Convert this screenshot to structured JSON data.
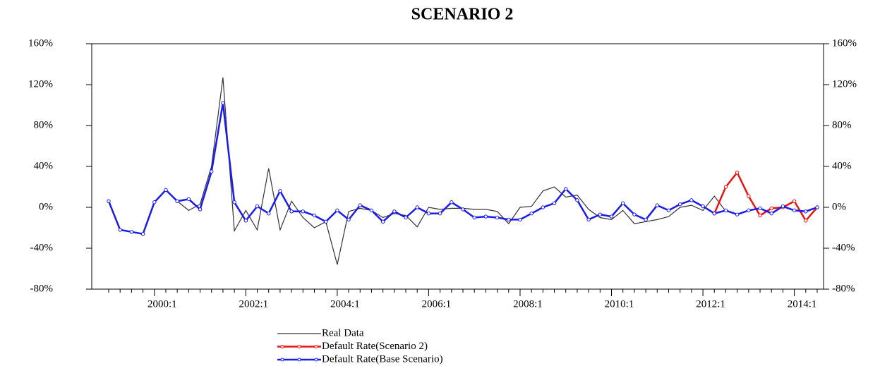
{
  "chart_data": {
    "type": "line",
    "title": "SCENARIO 2",
    "categories": [
      null,
      null,
      null,
      null,
      "2000:1",
      null,
      null,
      null,
      null,
      null,
      null,
      null,
      "2002:1",
      null,
      null,
      null,
      null,
      null,
      null,
      null,
      "2004:1",
      null,
      null,
      null,
      null,
      null,
      null,
      null,
      "2006:1",
      null,
      null,
      null,
      null,
      null,
      null,
      null,
      "2008:1",
      null,
      null,
      null,
      null,
      null,
      null,
      null,
      "2010:1",
      null,
      null,
      null,
      null,
      null,
      null,
      null,
      "2012:1",
      null,
      null,
      null,
      null,
      null,
      null,
      null,
      "2014:1",
      null,
      null
    ],
    "series": [
      {
        "name": "Real Data",
        "color": "#333333",
        "markers": false,
        "values": [
          6,
          -22,
          -24,
          -26,
          5,
          17,
          6,
          -3,
          3,
          40,
          127,
          -23,
          -3,
          -22,
          38,
          -22,
          6,
          -10,
          -20,
          -14,
          -56,
          -4,
          -1,
          -3,
          -10,
          -6,
          -8,
          -19,
          0,
          -2,
          -1,
          -1,
          -2,
          -2,
          -4,
          -16,
          0,
          1,
          16,
          20,
          10,
          12,
          -2,
          -10,
          -12,
          -3,
          -16,
          -14,
          -12,
          -9,
          0,
          2,
          -3,
          11,
          -4,
          null,
          null,
          null,
          null,
          null,
          null,
          null,
          null
        ]
      },
      {
        "name": "Default Rate(Scenario 2)",
        "color": "#ee1111",
        "markers": true,
        "values": [
          null,
          null,
          null,
          null,
          null,
          null,
          null,
          null,
          null,
          null,
          null,
          null,
          null,
          null,
          null,
          null,
          null,
          null,
          null,
          null,
          null,
          null,
          null,
          null,
          null,
          null,
          null,
          null,
          null,
          null,
          null,
          null,
          null,
          null,
          null,
          null,
          null,
          null,
          null,
          null,
          null,
          null,
          null,
          null,
          null,
          null,
          null,
          null,
          null,
          null,
          null,
          null,
          null,
          -6,
          20,
          34,
          11,
          -8,
          -1,
          0,
          6,
          -13,
          0
        ]
      },
      {
        "name": "Default Rate(Base Scenario)",
        "color": "#1a1aee",
        "markers": true,
        "values": [
          6,
          -22,
          -24,
          -26,
          5,
          17,
          6,
          8,
          -2,
          35,
          102,
          5,
          -13,
          1,
          -6,
          16,
          -4,
          -4,
          -8,
          -14,
          -3,
          -12,
          2,
          -3,
          -14,
          -4,
          -10,
          0,
          -6,
          -6,
          5,
          -2,
          -10,
          -9,
          -10,
          -12,
          -12,
          -6,
          0,
          4,
          18,
          7,
          -12,
          -7,
          -9,
          4,
          -7,
          -12,
          2,
          -3,
          3,
          7,
          1,
          -6,
          -3,
          -7,
          -3,
          -1,
          -6,
          1,
          -3,
          -4,
          0
        ]
      }
    ],
    "ylim": [
      -80,
      160
    ],
    "yticks": [
      {
        "value": -80,
        "label": "-80%"
      },
      {
        "value": -40,
        "label": "-40%"
      },
      {
        "value": 0,
        "label": "0%"
      },
      {
        "value": 40,
        "label": "40%"
      },
      {
        "value": 80,
        "label": "80%"
      },
      {
        "value": 120,
        "label": "120%"
      },
      {
        "value": 160,
        "label": "160%"
      }
    ],
    "y2lim": [
      -80,
      160
    ],
    "y2ticks": [
      {
        "value": -80,
        "label": "-80%"
      },
      {
        "value": -40,
        "label": "-40%"
      },
      {
        "value": 0,
        "label": "0%"
      },
      {
        "value": 40,
        "label": "40%"
      },
      {
        "value": 80,
        "label": "80%"
      },
      {
        "value": 120,
        "label": "120%"
      },
      {
        "value": 160,
        "label": "160%"
      }
    ],
    "grid": false,
    "legend": "bottom"
  }
}
